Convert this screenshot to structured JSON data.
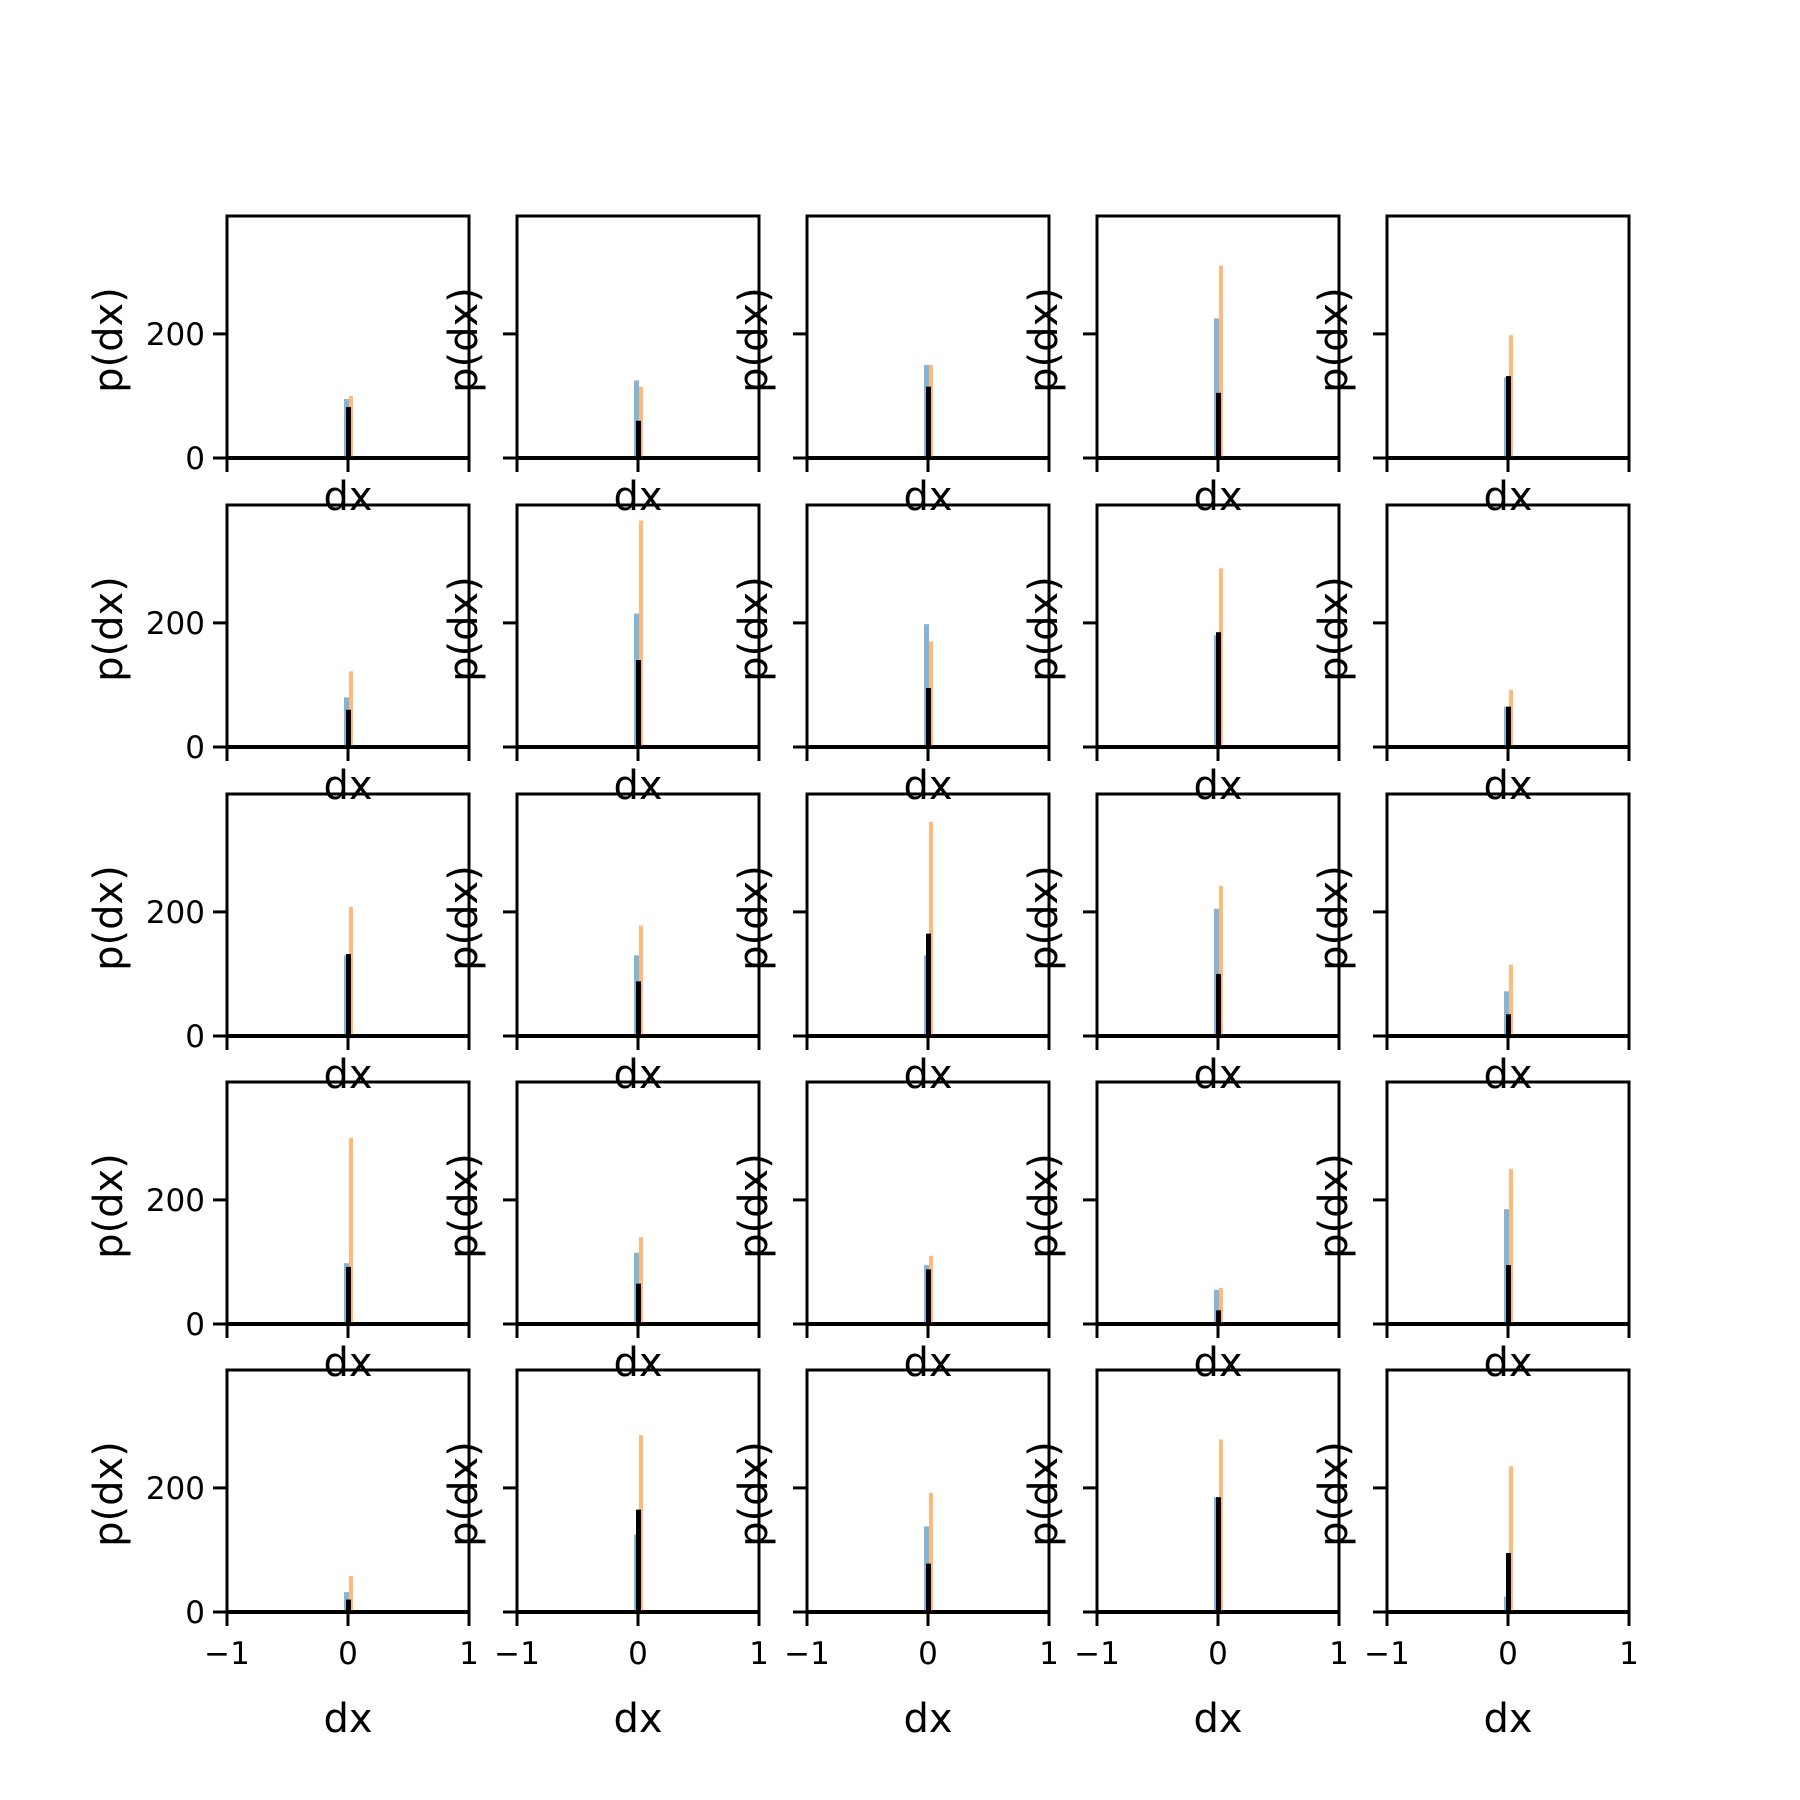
{
  "chart_data": {
    "type": "histogram-grid",
    "rows": 5,
    "cols": 5,
    "xlabel": "dx",
    "ylabel": "p(dx)",
    "xlim": [
      -1,
      1
    ],
    "ylim": [
      0,
      390
    ],
    "xticks": [
      -1,
      0,
      1
    ],
    "xtick_labels": [
      "−1",
      "0",
      "1"
    ],
    "yticks": [
      0,
      200
    ],
    "ytick_labels": [
      "0",
      "200"
    ],
    "colors": {
      "series_a": "#1f77b4",
      "series_b": "#ff7f0e",
      "series_c": "#000000"
    },
    "panels": [
      {
        "a": 95,
        "b": 100,
        "c": 82
      },
      {
        "a": 125,
        "b": 115,
        "c": 60
      },
      {
        "a": 150,
        "b": 150,
        "c": 115
      },
      {
        "a": 225,
        "b": 310,
        "c": 105
      },
      {
        "a": 130,
        "b": 198,
        "c": 132
      },
      {
        "a": 80,
        "b": 122,
        "c": 60
      },
      {
        "a": 215,
        "b": 365,
        "c": 140
      },
      {
        "a": 198,
        "b": 170,
        "c": 95
      },
      {
        "a": 180,
        "b": 288,
        "c": 185
      },
      {
        "a": 65,
        "b": 92,
        "c": 65
      },
      {
        "a": 130,
        "b": 208,
        "c": 132
      },
      {
        "a": 130,
        "b": 178,
        "c": 88
      },
      {
        "a": 130,
        "b": 345,
        "c": 165
      },
      {
        "a": 205,
        "b": 242,
        "c": 100
      },
      {
        "a": 72,
        "b": 115,
        "c": 35
      },
      {
        "a": 98,
        "b": 300,
        "c": 92
      },
      {
        "a": 115,
        "b": 140,
        "c": 65
      },
      {
        "a": 95,
        "b": 110,
        "c": 88
      },
      {
        "a": 55,
        "b": 58,
        "c": 22
      },
      {
        "a": 185,
        "b": 250,
        "c": 95
      },
      {
        "a": 32,
        "b": 58,
        "c": 20
      },
      {
        "a": 125,
        "b": 285,
        "c": 165
      },
      {
        "a": 138,
        "b": 192,
        "c": 78
      },
      {
        "a": 185,
        "b": 278,
        "c": 185
      },
      {
        "a": 25,
        "b": 235,
        "c": 95
      }
    ]
  }
}
